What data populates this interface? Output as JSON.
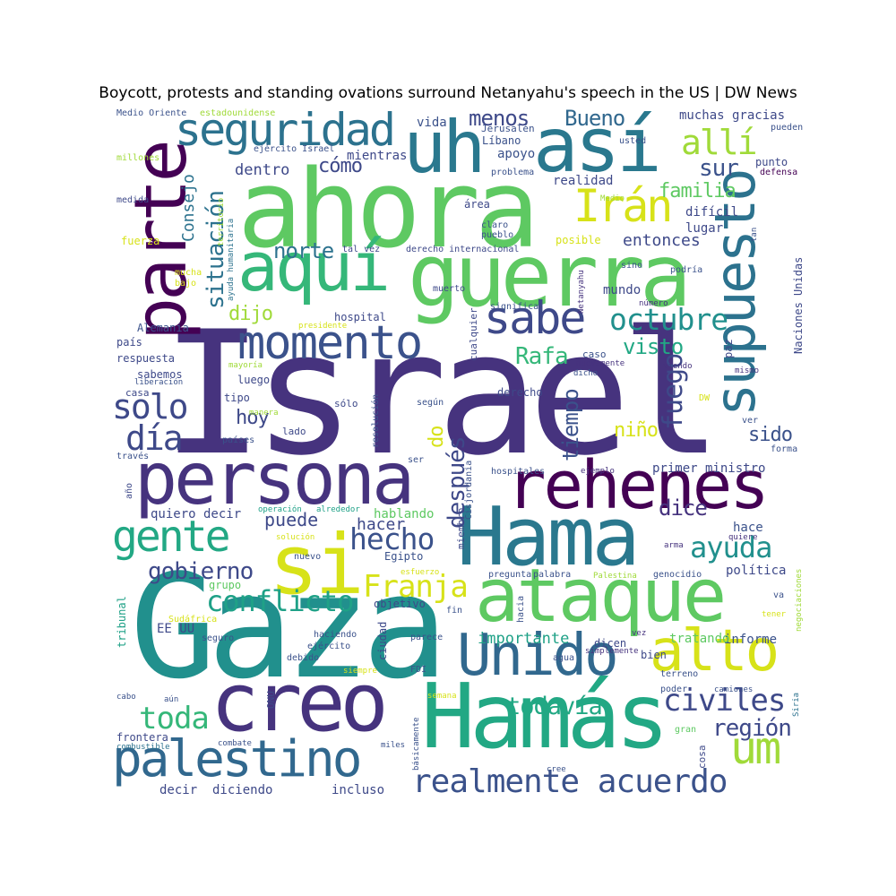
{
  "title": "Boycott, protests and standing ovations surround Netanyahu's speech in the US | DW News",
  "colors": {
    "purple_dark": "#440154",
    "indigo": "#46337e",
    "blue": "#365c8d",
    "teal_blue": "#277f8e",
    "teal": "#1fa187",
    "green": "#4ac16d",
    "lime": "#a0da39",
    "yellow": "#d7e219"
  },
  "words": {
    "israel": "Israel",
    "gaza": "Gaza",
    "ahora": "ahora",
    "guerra": "guerra",
    "hamas_acc": "Hamás",
    "hama": "Hama",
    "ataque": "ataque",
    "persona": "persona",
    "rehenes": "rehenes",
    "si": "si",
    "asi": "así",
    "uh": "uh",
    "aqui": "aquí",
    "parte": "parte",
    "creo": "creo",
    "unido": "Unido",
    "alto": "alto",
    "momento": "momento",
    "supuesto": "supuesto",
    "palestino": "palestino",
    "seguridad": "seguridad",
    "sabe": "sabe",
    "iran": "Irán",
    "gente": "gente",
    "um": "um",
    "realmente_acuerdo": "realmente acuerdo",
    "octubre": "octubre",
    "conflicto": "conflicto",
    "solo": "solo",
    "dia": "día",
    "hecho": "hecho",
    "alli": "allí",
    "civiles": "civiles",
    "toda": "toda",
    "ayuda": "ayuda",
    "franja": "Franja",
    "fuego": "fuego",
    "situacion": "situación",
    "gobierno": "gobierno",
    "todavia": "todavía",
    "bueno": "Bueno",
    "menos": "menos",
    "sur": "sur",
    "norte": "norte",
    "rafa": "Rafa",
    "region": "región",
    "familia": "familia",
    "visto": "visto",
    "despues": "después",
    "tiempo": "tiempo",
    "sido": "sido",
    "puede": "puede",
    "dice": "dice",
    "entonces": "entonces",
    "consejo": "Consejo",
    "como": "cómo",
    "dentro": "dentro",
    "dijo": "dijo",
    "hoy": "hoy",
    "nino": "niño",
    "do": "do",
    "hacer": "hacer",
    "importante": "importante",
    "hablando": "hablando",
    "hace": "hace",
    "politica": "política",
    "informe": "informe",
    "tratando": "tratando",
    "quiero_decir": "quiero decir",
    "primer_ministro": "primer ministro",
    "mundo": "mundo",
    "dificil": "difícil",
    "lugar": "lugar",
    "realidad": "realidad",
    "mientras": "mientras",
    "apoyo": "apoyo",
    "vida": "vida",
    "jerusalen": "Jerusalén",
    "libano": "Líbano",
    "muchas_gracias": "muchas gracias",
    "usted": "usted",
    "pueden": "pueden",
    "defensa": "defensa",
    "punto": "punto",
    "problema": "problema",
    "ejercito_israel": "ejército Israel",
    "medio_oriente": "Medio Oriente",
    "estadounidense": "estadounidense",
    "millones": "millones",
    "medida": "medida",
    "fuerza": "fuerza",
    "mucha": "mucha",
    "bajo": "bajo",
    "territorio": "territorio",
    "ayuda_humanitaria": "ayuda humanitaria",
    "tal_vez": "tal vez",
    "derecho_internacional": "derecho internacional",
    "area": "área",
    "claro": "claro",
    "pueblo": "pueblo",
    "medio": "Medio",
    "posible": "posible",
    "netanyahu": "Netanyahu",
    "muerto": "muerto",
    "sino": "sino",
    "podria": "podría",
    "numero": "número",
    "significa": "significa",
    "tan": "tan",
    "naciones_unidas": "Naciones Unidas",
    "alemania": "Alemania",
    "hospital": "hospital",
    "presidente": "presidente",
    "pais": "país",
    "respuesta": "respuesta",
    "sabemos": "sabemos",
    "mayoria": "mayoría",
    "liberacion": "liberación",
    "luego": "luego",
    "casa": "casa",
    "tipo": "tipo",
    "caso": "caso",
    "nuevamente": "nuevamente",
    "dicho": "dicho",
    "viendo": "viendo",
    "paz": "paz",
    "mismo": "mismo",
    "resolucion": "resolución",
    "cualquier": "cualquier",
    "derecho": "derecho",
    "solo_acc": "sólo",
    "segun": "según",
    "dw": "DW",
    "ver": "ver",
    "forma": "forma",
    "lado": "lado",
    "manera": "manera",
    "paises": "países",
    "traves": "través",
    "ser": "ser",
    "ano": "año",
    "hospitales": "hospitales",
    "ejemplo": "ejemplo",
    "cisjordania": "Cisjordania",
    "miembro": "miembro",
    "operacion": "operación",
    "alrededor": "alrededor",
    "solucion": "solución",
    "nuevo": "nuevo",
    "egipto": "Egipto",
    "arma": "arma",
    "quiere": "quiere",
    "negociaciones": "negociaciones",
    "esfuerzo": "esfuerzo",
    "pregunta": "pregunta",
    "palabra": "palabra",
    "palestina": "Palestina",
    "genocidio": "genocidio",
    "va": "va",
    "grupo": "grupo",
    "tribunal": "tribunal",
    "objetivo": "objetivo",
    "fin": "fin",
    "hacia": "hacia",
    "tener": "tener",
    "sudafrica": "Sudáfrica",
    "ee_uu": "EE UU",
    "haciendo": "haciendo",
    "seguro": "seguro",
    "ejercito": "ejército",
    "debido": "debido",
    "ciudad": "ciudad",
    "parece": "parece",
    "vez": "vez",
    "dicen": "dicen",
    "agua": "agua",
    "simplemente": "simplemente",
    "bien": "bien",
    "siempre": "siempre",
    "fdi": "FDI",
    "terreno": "terreno",
    "cabo": "cabo",
    "aun": "aún",
    "onu": "ONU",
    "semana": "semana",
    "poder": "poder",
    "camiones": "camiones",
    "siria": "Siria",
    "frontera": "frontera",
    "combustible": "combustible",
    "combate": "combate",
    "basicamente": "básicamente",
    "miles": "miles",
    "gran": "gran",
    "cosa": "cosa",
    "decir": "decir",
    "diciendo": "diciendo",
    "incluso": "incluso",
    "cree": "cree"
  }
}
